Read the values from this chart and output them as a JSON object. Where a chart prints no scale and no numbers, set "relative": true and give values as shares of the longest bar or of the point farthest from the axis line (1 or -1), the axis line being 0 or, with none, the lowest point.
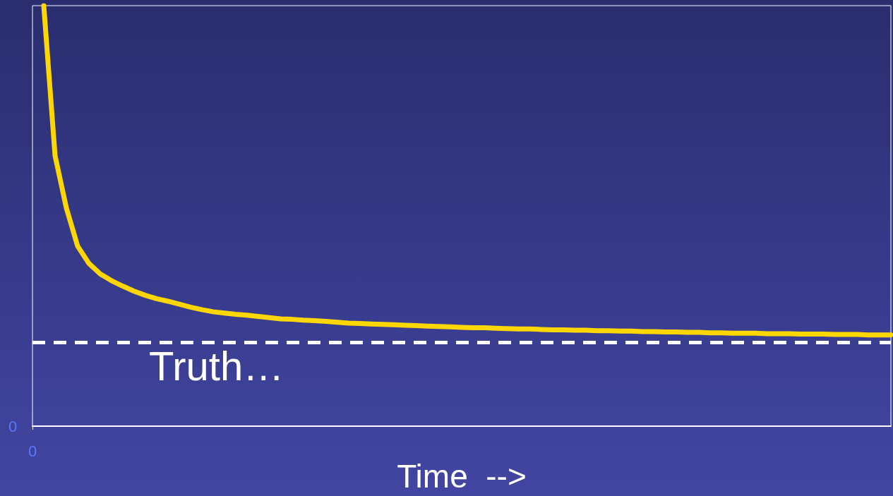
{
  "chart_data": {
    "type": "line",
    "relative": true,
    "xlabel": "Time  -->",
    "categories": [
      null,
      null,
      null,
      null,
      null,
      null,
      null,
      null,
      null,
      null,
      null,
      null,
      null,
      null,
      null,
      null,
      null,
      null,
      null,
      null,
      null,
      null,
      null,
      null,
      null,
      null,
      null,
      null,
      null,
      null,
      null,
      null,
      null,
      null,
      null,
      null,
      null,
      null,
      null,
      null,
      null,
      null,
      null,
      null,
      null,
      null,
      null,
      null,
      null,
      null,
      null,
      null,
      null,
      null,
      null,
      null,
      null,
      null,
      null,
      null,
      null,
      null,
      null,
      null,
      null,
      null,
      null,
      null,
      null,
      null,
      null,
      null,
      null,
      null,
      null,
      null,
      null
    ],
    "series": [
      {
        "color": "#ffd700",
        "values": [
          null,
          1.0,
          0.643,
          0.519,
          0.428,
          0.387,
          0.362,
          0.346,
          0.333,
          0.321,
          0.311,
          0.303,
          0.297,
          0.29,
          0.283,
          0.277,
          0.272,
          0.269,
          0.266,
          0.264,
          0.261,
          0.258,
          0.255,
          0.254,
          0.252,
          0.251,
          0.249,
          0.247,
          0.245,
          0.244,
          0.243,
          0.242,
          0.241,
          0.24,
          0.239,
          0.238,
          0.237,
          0.236,
          0.235,
          0.234,
          0.234,
          0.233,
          0.232,
          0.231,
          0.231,
          0.23,
          0.229,
          0.229,
          0.228,
          0.228,
          0.227,
          0.227,
          0.226,
          0.226,
          0.225,
          0.225,
          0.224,
          0.224,
          0.223,
          0.223,
          0.222,
          0.222,
          0.221,
          0.221,
          0.221,
          0.22,
          0.22,
          0.22,
          0.219,
          0.219,
          0.219,
          0.218,
          0.218,
          0.218,
          0.217,
          0.217,
          0.217
        ]
      }
    ],
    "ref_lines": [
      {
        "axis": "y",
        "value": 0.196,
        "label": "Truth…",
        "color": "#ffffff",
        "line_style": "dashed"
      }
    ],
    "annotations": [
      "0",
      "0"
    ],
    "marker": "none"
  }
}
